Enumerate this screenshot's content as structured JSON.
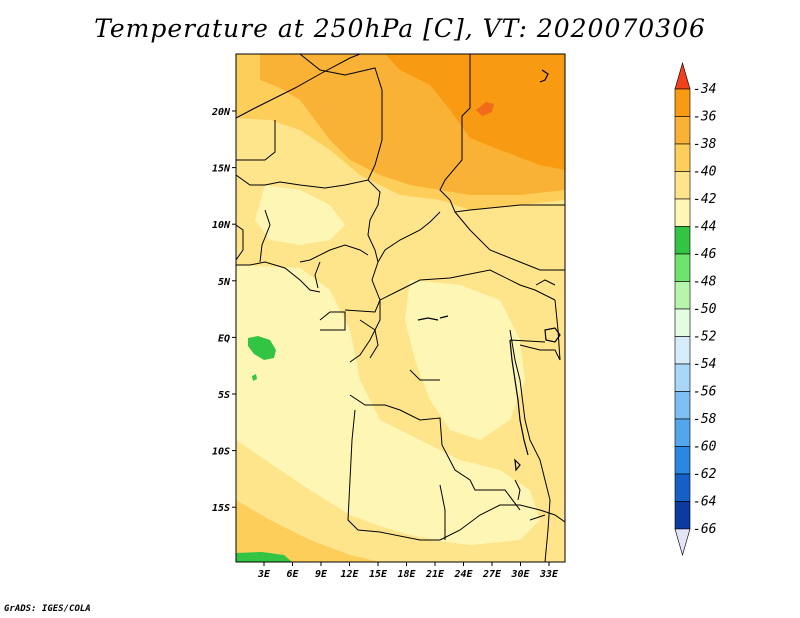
{
  "title": "Temperature at 250hPa [C], VT: 2020070306",
  "credit": "GrADS: IGES/COLA",
  "map": {
    "x_ticks": [
      "3E",
      "6E",
      "9E",
      "12E",
      "15E",
      "18E",
      "21E",
      "24E",
      "27E",
      "30E",
      "33E"
    ],
    "y_ticks": [
      "20N",
      "15N",
      "10N",
      "5N",
      "EQ",
      "5S",
      "10S",
      "15S"
    ],
    "shading_colors": {
      "le_-44_green": "#33c443",
      "-44_-42": "#fef6b4",
      "-42_-40": "#fee58c",
      "-40_-38": "#fdce5a",
      "-38_-36": "#f9b235",
      "-36_-34": "#f89b12",
      "gt_-34": "#f26a1c"
    }
  },
  "colorbar": {
    "labels": [
      "-34",
      "-36",
      "-38",
      "-40",
      "-42",
      "-44",
      "-46",
      "-48",
      "-50",
      "-52",
      "-54",
      "-56",
      "-58",
      "-60",
      "-62",
      "-64",
      "-66"
    ],
    "colors": [
      "#f26a1c",
      "#f89b12",
      "#f9b235",
      "#fdce5a",
      "#fee58c",
      "#fef6b4",
      "#33c443",
      "#6ee36d",
      "#b6f5ab",
      "#e3fde1",
      "#d5ecfb",
      "#a9d7f7",
      "#7dbff2",
      "#52a6ec",
      "#2a87e3",
      "#1560c8",
      "#0c3a9e",
      "#0d1769"
    ],
    "top_arrow_color": "#f0411d",
    "bottom_arrow_color": "#e4e4f7"
  }
}
